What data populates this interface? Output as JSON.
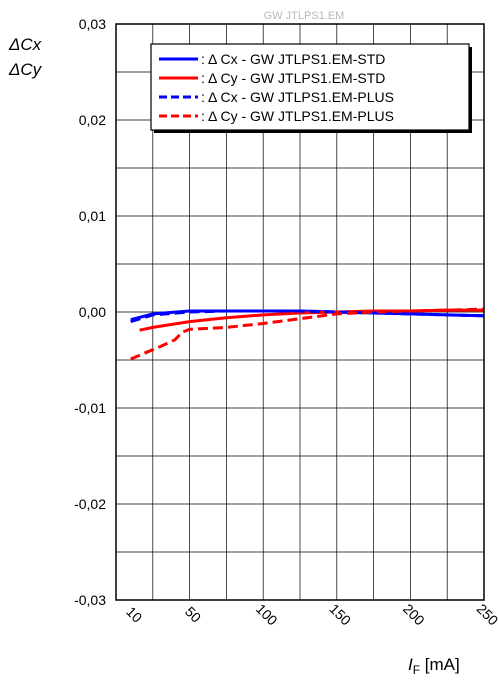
{
  "chart_data": {
    "type": "line",
    "watermark": "GW JTLPS1.EM",
    "ylabel_lines": [
      "ΔCx",
      "ΔCy"
    ],
    "xlabel_main": "I",
    "xlabel_sub": "F",
    "xlabel_unit": " [mA]",
    "xlim": [
      0,
      250
    ],
    "ylim": [
      -0.03,
      0.03
    ],
    "x_ticks": [
      10,
      50,
      100,
      150,
      200,
      250
    ],
    "x_tick_labels": [
      "10",
      "50",
      "100",
      "150",
      "200",
      "250"
    ],
    "y_ticks": [
      0.03,
      0.02,
      0.01,
      0.0,
      -0.01,
      -0.02,
      -0.03
    ],
    "y_tick_labels": [
      "0,03",
      "0,02",
      "0,01",
      "0,00",
      "-0,01",
      "-0,02",
      "-0,03"
    ],
    "grid": true,
    "legend_position": "top-right",
    "series": [
      {
        "name": ": Δ Cx - GW JTLPS1.EM-STD",
        "color": "#0000ff",
        "dash": "solid",
        "x": [
          10,
          25,
          50,
          75,
          100,
          125,
          150,
          175,
          200,
          225,
          250
        ],
        "y": [
          -0.0008,
          -0.0002,
          0.0001,
          0.0001,
          0.0001,
          0.0001,
          0.0,
          -0.0001,
          -0.0002,
          -0.0003,
          -0.0004
        ]
      },
      {
        "name": ": Δ Cy - GW JTLPS1.EM-STD",
        "color": "#ff0000",
        "dash": "solid",
        "x": [
          16,
          25,
          50,
          75,
          100,
          125,
          150,
          175,
          200,
          225,
          250
        ],
        "y": [
          -0.0019,
          -0.0016,
          -0.001,
          -0.0006,
          -0.0003,
          -0.0001,
          0.0,
          0.0001,
          0.0001,
          0.0002,
          0.0002
        ]
      },
      {
        "name": ": Δ Cx - GW JTLPS1.EM-PLUS",
        "color": "#0000ff",
        "dash": "dashed",
        "x": [
          10,
          25,
          50,
          75,
          100,
          125,
          150,
          175,
          200,
          225,
          250
        ],
        "y": [
          -0.001,
          -0.0003,
          0.0,
          0.0001,
          0.0001,
          0.0001,
          0.0,
          -0.0001,
          -0.0002,
          -0.0003,
          -0.0004
        ]
      },
      {
        "name": ": Δ Cy - GW JTLPS1.EM-PLUS",
        "color": "#ff0000",
        "dash": "dashed",
        "x": [
          10,
          30,
          40,
          45,
          50,
          75,
          100,
          125,
          150,
          175,
          200,
          225,
          250
        ],
        "y": [
          -0.0049,
          -0.0036,
          -0.0029,
          -0.0021,
          -0.0018,
          -0.0016,
          -0.0012,
          -0.0007,
          -0.0002,
          0.0,
          0.0001,
          0.0002,
          0.0003
        ]
      }
    ]
  }
}
